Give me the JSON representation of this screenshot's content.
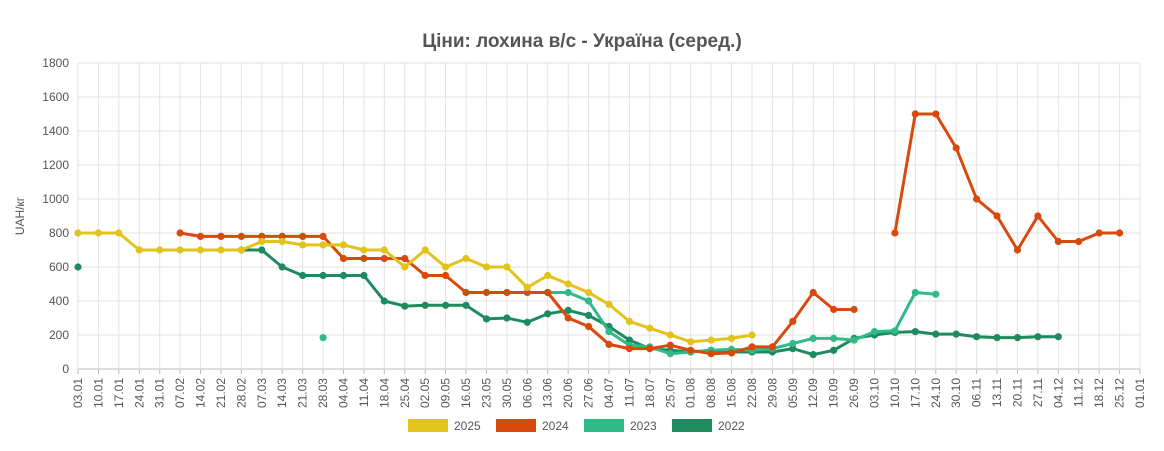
{
  "chart_data": {
    "type": "line",
    "title": "Ціни: лохина в/с - Україна (серед.)",
    "ylabel": "UAH/кг",
    "xlabel": "",
    "ylim": [
      0,
      1800
    ],
    "yticks": [
      0,
      200,
      400,
      600,
      800,
      1000,
      1200,
      1400,
      1600,
      1800
    ],
    "grid": true,
    "legend_position": "bottom",
    "x": [
      "03.01",
      "10.01",
      "17.01",
      "24.01",
      "31.01",
      "07.02",
      "14.02",
      "21.02",
      "28.02",
      "07.03",
      "14.03",
      "21.03",
      "28.03",
      "04.04",
      "11.04",
      "18.04",
      "25.04",
      "02.05",
      "09.05",
      "16.05",
      "23.05",
      "30.05",
      "06.06",
      "13.06",
      "20.06",
      "27.06",
      "04.07",
      "11.07",
      "18.07",
      "25.07",
      "01.08",
      "08.08",
      "15.08",
      "22.08",
      "29.08",
      "05.09",
      "12.09",
      "19.09",
      "26.09",
      "03.10",
      "10.10",
      "17.10",
      "24.10",
      "30.10",
      "06.11",
      "13.11",
      "20.11",
      "27.11",
      "04.12",
      "11.12",
      "18.12",
      "25.12",
      "01.01"
    ],
    "series": [
      {
        "name": "2025",
        "color": "#e2c31c",
        "values": [
          800,
          800,
          800,
          700,
          700,
          700,
          700,
          700,
          700,
          750,
          750,
          730,
          730,
          730,
          700,
          700,
          600,
          700,
          600,
          650,
          600,
          600,
          480,
          550,
          500,
          450,
          380,
          280,
          240,
          200,
          160,
          170,
          180,
          200,
          null,
          null,
          null,
          null,
          null,
          null,
          null,
          null,
          null,
          null,
          null,
          null,
          null,
          null,
          null,
          null,
          null,
          null,
          null
        ]
      },
      {
        "name": "2024",
        "color": "#d84a0c",
        "values": [
          null,
          null,
          null,
          null,
          null,
          800,
          780,
          780,
          780,
          780,
          780,
          780,
          780,
          650,
          650,
          650,
          650,
          550,
          550,
          450,
          450,
          450,
          450,
          450,
          300,
          250,
          145,
          120,
          120,
          140,
          110,
          90,
          95,
          130,
          130,
          280,
          450,
          350,
          350,
          null,
          800,
          1500,
          1500,
          1300,
          1000,
          900,
          700,
          900,
          750,
          750,
          800,
          800,
          null
        ]
      },
      {
        "name": "2023",
        "color": "#2fba87",
        "values": [
          null,
          null,
          null,
          null,
          null,
          null,
          null,
          null,
          null,
          null,
          null,
          null,
          185,
          null,
          null,
          null,
          null,
          null,
          null,
          null,
          null,
          null,
          null,
          450,
          450,
          400,
          220,
          140,
          130,
          90,
          100,
          110,
          115,
          110,
          120,
          150,
          180,
          180,
          170,
          220,
          225,
          450,
          440,
          null,
          null,
          null,
          null,
          null,
          null,
          null,
          null,
          null,
          null
        ]
      },
      {
        "name": "2022",
        "color": "#1e8a60",
        "values": [
          600,
          null,
          null,
          null,
          null,
          null,
          null,
          null,
          700,
          700,
          600,
          550,
          550,
          550,
          550,
          400,
          370,
          375,
          375,
          375,
          295,
          300,
          275,
          325,
          345,
          315,
          250,
          170,
          120,
          110,
          100,
          110,
          100,
          100,
          100,
          120,
          85,
          110,
          180,
          200,
          215,
          220,
          205,
          205,
          190,
          185,
          185,
          190,
          190,
          null,
          null,
          null,
          null
        ]
      }
    ]
  }
}
